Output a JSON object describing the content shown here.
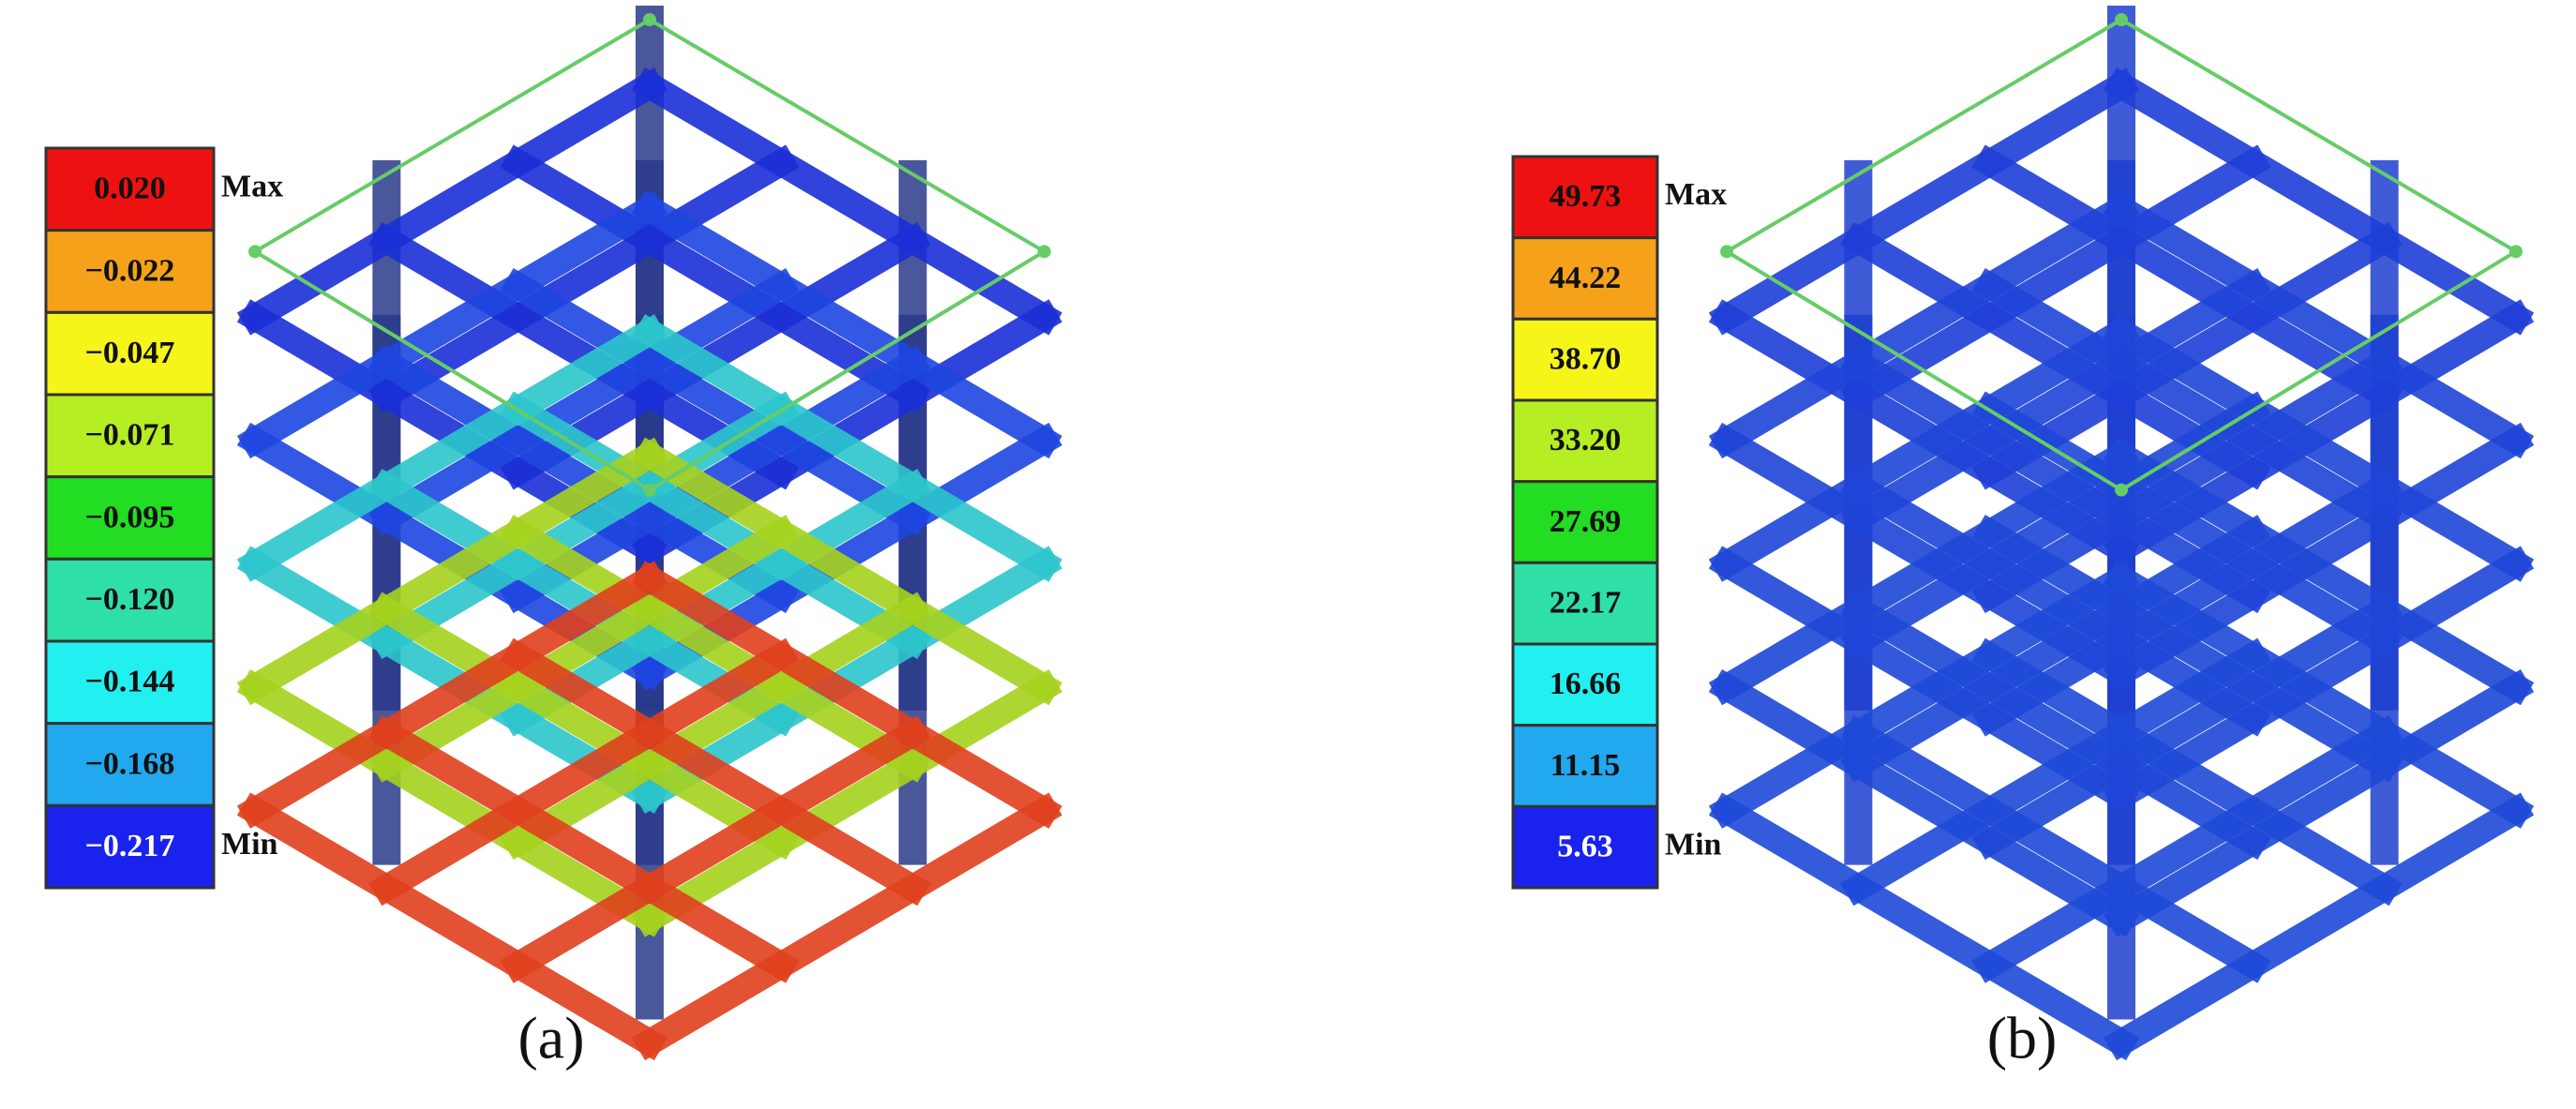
{
  "panels": [
    {
      "caption": "(a)",
      "max_label": "Max",
      "min_label": "Min",
      "legend": [
        "0.020",
        "−0.022",
        "−0.047",
        "−0.071",
        "−0.095",
        "−0.120",
        "−0.144",
        "−0.168",
        "−0.217"
      ],
      "legend_colors": [
        "#ee1111",
        "#f5a21a",
        "#f5f51a",
        "#b5ee22",
        "#22dd22",
        "#2ee0a8",
        "#22f0f0",
        "#22a8ee",
        "#1a22ee"
      ]
    },
    {
      "caption": "(b)",
      "max_label": "Max",
      "min_label": "Min",
      "legend": [
        "49.73",
        "44.22",
        "38.70",
        "33.20",
        "27.69",
        "22.17",
        "16.66",
        "11.15",
        "5.63"
      ],
      "legend_colors": [
        "#ee1111",
        "#f5a21a",
        "#f5f51a",
        "#b5ee22",
        "#22dd22",
        "#2ee0a8",
        "#22f0f0",
        "#22a8ee",
        "#1a22ee"
      ]
    }
  ]
}
